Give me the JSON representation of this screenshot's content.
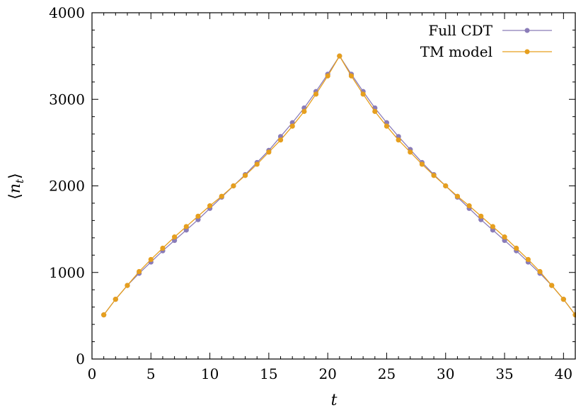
{
  "chart_data": {
    "type": "line",
    "xlabel": "t",
    "ylabel": "⟨n_t⟩",
    "xlim": [
      0,
      41
    ],
    "ylim": [
      0,
      4000
    ],
    "xticks": [
      0,
      5,
      10,
      15,
      20,
      25,
      30,
      35,
      40
    ],
    "yticks": [
      0,
      1000,
      2000,
      3000,
      4000
    ],
    "legend_position": "top-right",
    "grid": false,
    "x": [
      1,
      2,
      3,
      4,
      5,
      6,
      7,
      8,
      9,
      10,
      11,
      12,
      13,
      14,
      15,
      16,
      17,
      18,
      19,
      20,
      21,
      22,
      23,
      24,
      25,
      26,
      27,
      28,
      29,
      30,
      31,
      32,
      33,
      34,
      35,
      36,
      37,
      38,
      39,
      40,
      41
    ],
    "series": [
      {
        "name": "Full CDT",
        "color": "#8a7cb8",
        "values": [
          510,
          690,
          850,
          990,
          1120,
          1250,
          1370,
          1490,
          1610,
          1740,
          1870,
          2000,
          2130,
          2270,
          2410,
          2570,
          2730,
          2900,
          3090,
          3290,
          3500,
          3290,
          3090,
          2900,
          2730,
          2570,
          2420,
          2270,
          2130,
          2000,
          1870,
          1740,
          1610,
          1490,
          1370,
          1250,
          1120,
          990,
          850,
          690,
          510
        ]
      },
      {
        "name": "TM model",
        "color": "#e69f1e",
        "values": [
          510,
          690,
          850,
          1010,
          1150,
          1280,
          1410,
          1530,
          1650,
          1770,
          1880,
          2000,
          2120,
          2250,
          2390,
          2530,
          2690,
          2860,
          3060,
          3270,
          3500,
          3270,
          3060,
          2860,
          2690,
          2530,
          2390,
          2250,
          2120,
          2000,
          1880,
          1770,
          1650,
          1530,
          1410,
          1280,
          1150,
          1010,
          850,
          690,
          510
        ]
      }
    ]
  }
}
